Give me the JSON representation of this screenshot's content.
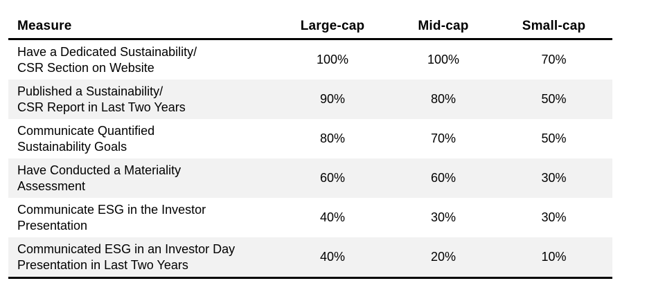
{
  "chart_data": {
    "type": "table",
    "columns": [
      "Measure",
      "Large-cap",
      "Mid-cap",
      "Small-cap"
    ],
    "rows": [
      {
        "measure": "Have a Dedicated Sustainability/\nCSR Section on Website",
        "values": [
          "100%",
          "100%",
          "70%"
        ]
      },
      {
        "measure": "Published a Sustainability/\nCSR Report in Last Two Years",
        "values": [
          "90%",
          "80%",
          "50%"
        ]
      },
      {
        "measure": "Communicate Quantified\nSustainability Goals",
        "values": [
          "80%",
          "70%",
          "50%"
        ]
      },
      {
        "measure": "Have Conducted a Materiality\nAssessment",
        "values": [
          "60%",
          "60%",
          "30%"
        ]
      },
      {
        "measure": "Communicate ESG in the Investor\nPresentation",
        "values": [
          "40%",
          "30%",
          "30%"
        ]
      },
      {
        "measure": "Communicated ESG in an Investor Day\nPresentation in Last Two Years",
        "values": [
          "40%",
          "20%",
          "10%"
        ]
      }
    ],
    "layout": {
      "stripe_color": "#f2f2f2",
      "rule_color": "#000000",
      "striped_rows": "even",
      "grid": "none",
      "value_alignment": "center"
    }
  }
}
